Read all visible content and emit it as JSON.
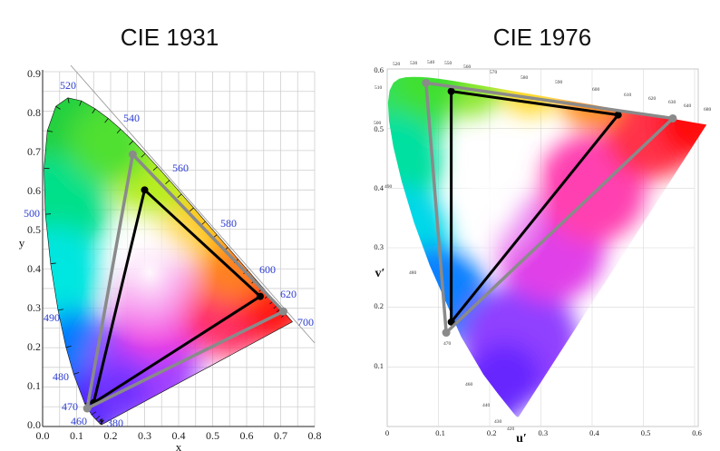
{
  "panels": [
    {
      "title": "CIE 1931",
      "x_ticks": [
        "0.0",
        "0.1",
        "0.2",
        "0.3",
        "0.4",
        "0.5",
        "0.6",
        "0.7",
        "0.8"
      ],
      "y_ticks": [
        "0.0",
        "0.1",
        "0.2",
        "0.3",
        "0.4",
        "0.5",
        "0.6",
        "0.7",
        "0.8",
        "0.9"
      ],
      "x_label": "x",
      "y_label": "y",
      "wavelengths": [
        "380",
        "460",
        "470",
        "480",
        "490",
        "500",
        "520",
        "540",
        "560",
        "580",
        "600",
        "620",
        "700"
      ],
      "triangles": [
        {
          "color": "#000000",
          "points": [
            [
              0.15,
              0.06
            ],
            [
              0.3,
              0.6
            ],
            [
              0.64,
              0.33
            ]
          ]
        },
        {
          "color": "#8a8a8a",
          "points": [
            [
              0.131,
              0.046
            ],
            [
              0.265,
              0.69
            ],
            [
              0.708,
              0.292
            ]
          ]
        }
      ]
    },
    {
      "title": "CIE 1976",
      "x_ticks": [
        "0",
        "0.1",
        "0.2",
        "0.3",
        "0.4",
        "0.5",
        "0.6"
      ],
      "y_ticks": [
        "0.1",
        "0.2",
        "0.3",
        "0.4",
        "0.5",
        "0.6"
      ],
      "x_label": "u′",
      "y_label": "v′",
      "wavelengths": [
        "420",
        "430",
        "440",
        "460",
        "470",
        "480",
        "490",
        "500",
        "510",
        "520",
        "530",
        "540",
        "550",
        "560",
        "570",
        "580",
        "590",
        "600",
        "610",
        "620",
        "630",
        "640",
        "680"
      ],
      "triangles": [
        {
          "color": "#000000",
          "points": [
            [
              0.125,
              0.1754
            ],
            [
              0.125,
              0.5625
            ],
            [
              0.4507,
              0.5229
            ]
          ]
        },
        {
          "color": "#8a8a8a",
          "points": [
            [
              0.1152,
              0.1576
            ],
            [
              0.0758,
              0.5766
            ],
            [
              0.5574,
              0.5171
            ]
          ]
        }
      ]
    }
  ]
}
